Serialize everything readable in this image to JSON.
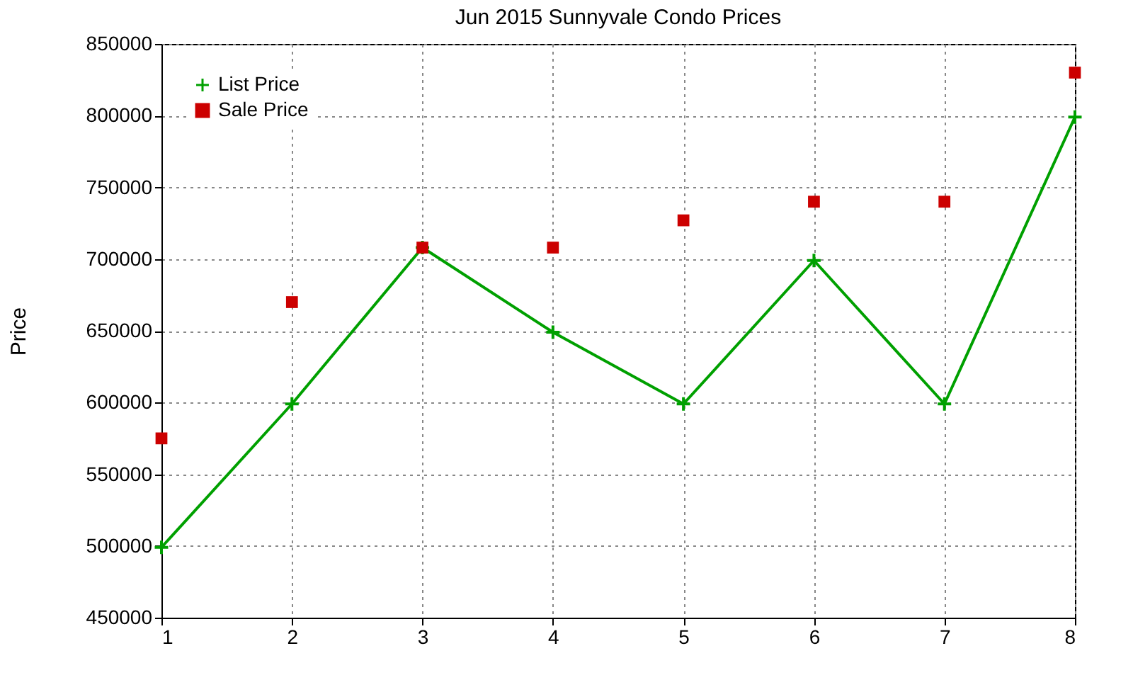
{
  "chart_data": {
    "type": "line",
    "title": "Jun 2015 Sunnyvale Condo Prices",
    "ylabel": "Price",
    "x": [
      1,
      2,
      3,
      4,
      5,
      6,
      7,
      8
    ],
    "series": [
      {
        "name": "List Price",
        "marker": "cross",
        "color": "#00a000",
        "values": [
          499000,
          599000,
          708000,
          649000,
          599000,
          699000,
          599000,
          799000
        ]
      },
      {
        "name": "Sale Price",
        "type": "scatter",
        "marker": "square",
        "color": "#cc0000",
        "values": [
          575000,
          670000,
          708000,
          708000,
          727000,
          740000,
          740000,
          830000
        ]
      }
    ],
    "xlim": [
      1,
      8
    ],
    "xticks": [
      1,
      2,
      3,
      4,
      5,
      6,
      7,
      8
    ],
    "ylim": [
      450000,
      850000
    ],
    "yticks": [
      450000,
      500000,
      550000,
      600000,
      650000,
      700000,
      750000,
      800000,
      850000
    ],
    "grid": true,
    "legend": "top left",
    "line_style": "solid"
  }
}
